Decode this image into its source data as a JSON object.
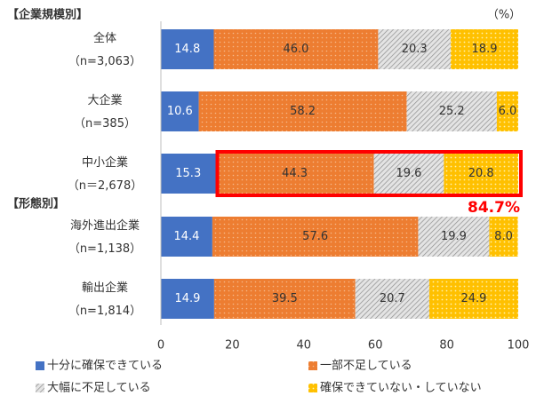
{
  "chart_data": {
    "type": "stacked-barh",
    "unit_label": "（%）",
    "groups": [
      {
        "label": "【企業規模別】",
        "start": 0
      },
      {
        "label": "【形態別】",
        "start": 3
      }
    ],
    "categories": [
      "全体",
      "大企業",
      "中小企業",
      "海外進出企業",
      "輸出企業"
    ],
    "category_counts": [
      "（n=3,063）",
      "（n=385）",
      "（n＝2,678）",
      "（n=1,138）",
      "（n=1,814）"
    ],
    "series": [
      {
        "name": "十分に確保できている",
        "color": "#4472c4",
        "pattern": "solid",
        "values": [
          14.8,
          10.6,
          15.3,
          14.4,
          14.9
        ],
        "value_labels": [
          "14.8",
          "10.6",
          "15.3",
          "14.4",
          "14.9"
        ]
      },
      {
        "name": "一部不足している",
        "color": "#ed7d31",
        "pattern": "dots",
        "values": [
          46.0,
          58.2,
          44.3,
          57.6,
          39.5
        ],
        "value_labels": [
          "46.0",
          "58.2",
          "44.3",
          "57.6",
          "39.5"
        ]
      },
      {
        "name": "大幅に不足している",
        "color": "#a6a6a6",
        "pattern": "hatch",
        "values": [
          20.3,
          25.2,
          19.6,
          19.9,
          20.7
        ],
        "value_labels": [
          "20.3",
          "25.2",
          "19.6",
          "19.9",
          "20.7"
        ]
      },
      {
        "name": "確保できていない・していない",
        "color": "#ffc000",
        "pattern": "dots",
        "values": [
          18.9,
          6.0,
          20.8,
          8.0,
          24.9
        ],
        "value_labels": [
          "18.9",
          "6.0",
          "20.8",
          "8.0",
          "24.9"
        ]
      }
    ],
    "highlight": {
      "category": 2,
      "from_series": 1,
      "annotation": "84.7%",
      "color": "#ff0000"
    },
    "xlim": [
      0,
      100
    ],
    "xticks": [
      0,
      20,
      40,
      60,
      80,
      100
    ]
  }
}
